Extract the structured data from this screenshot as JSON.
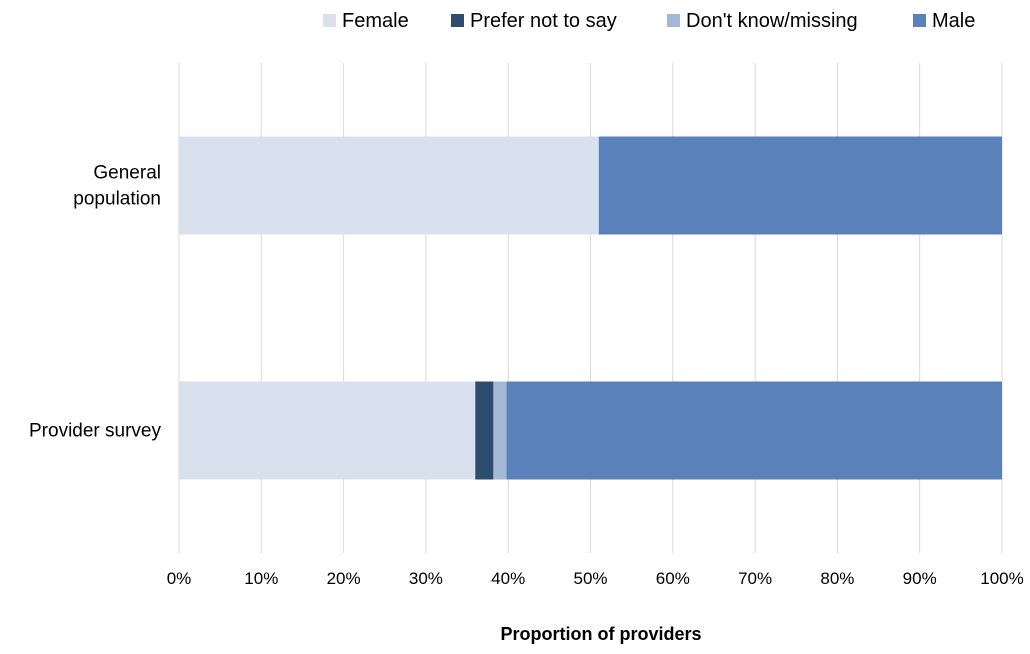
{
  "chart_data": {
    "type": "bar",
    "orientation": "horizontal",
    "stacked": "percent",
    "categories": [
      "General population",
      "Provider survey"
    ],
    "category_lines": [
      [
        "General",
        "population"
      ],
      [
        "Provider survey"
      ]
    ],
    "series": [
      {
        "name": "Female",
        "color": "#d9e1ef",
        "values": [
          51,
          36
        ]
      },
      {
        "name": "Prefer not to say",
        "color": "#2e4c6f",
        "values": [
          0,
          2.2
        ]
      },
      {
        "name": "Don't know/missing",
        "color": "#a3b7d6",
        "values": [
          0,
          1.6
        ]
      },
      {
        "name": "Male",
        "color": "#5a81ba",
        "values": [
          49,
          60.2
        ]
      }
    ],
    "legend_order": [
      "Female",
      "Prefer not to say",
      "Don't know/missing",
      "Male"
    ],
    "legend_position": "top",
    "xlabel": "Proportion of providers",
    "xlim": [
      0,
      100
    ],
    "xticks": [
      "0%",
      "10%",
      "20%",
      "30%",
      "40%",
      "50%",
      "60%",
      "70%",
      "80%",
      "90%",
      "100%"
    ],
    "grid": "vertical",
    "gridline_color": "#d9d9d9"
  }
}
